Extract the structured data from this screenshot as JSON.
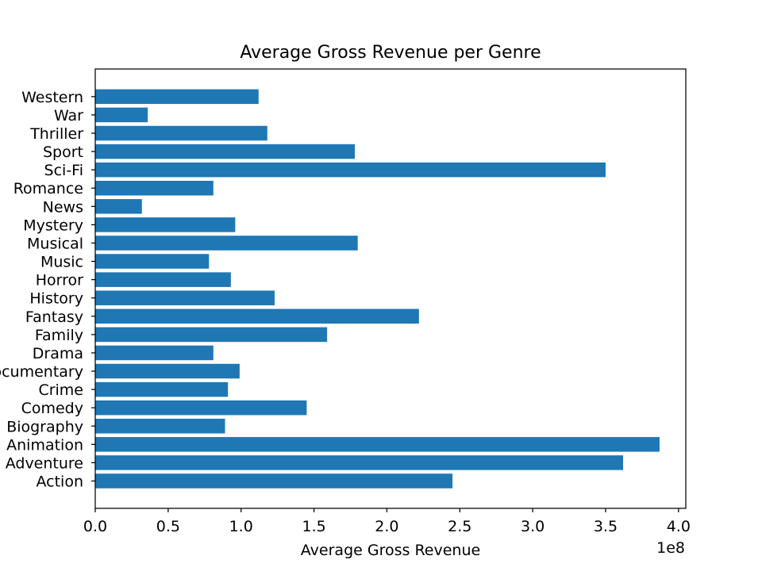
{
  "chart_data": {
    "type": "bar",
    "orientation": "horizontal",
    "title": "Average Gross Revenue per Genre",
    "xlabel": "Average Gross Revenue",
    "ylabel": "",
    "x_scale_note": "1e8",
    "xlim": [
      0,
      4.05
    ],
    "x_ticks": [
      {
        "value": 0.0,
        "label": "0.0"
      },
      {
        "value": 0.5,
        "label": "0.5"
      },
      {
        "value": 1.0,
        "label": "1.0"
      },
      {
        "value": 1.5,
        "label": "1.5"
      },
      {
        "value": 2.0,
        "label": "2.0"
      },
      {
        "value": 2.5,
        "label": "2.5"
      },
      {
        "value": 3.0,
        "label": "3.0"
      },
      {
        "value": 3.5,
        "label": "3.5"
      },
      {
        "value": 4.0,
        "label": "4.0"
      }
    ],
    "categories": [
      "Action",
      "Adventure",
      "Animation",
      "Biography",
      "Comedy",
      "Crime",
      "Documentary",
      "Drama",
      "Family",
      "Fantasy",
      "History",
      "Horror",
      "Music",
      "Musical",
      "Mystery",
      "News",
      "Romance",
      "Sci-Fi",
      "Sport",
      "Thriller",
      "War",
      "Western"
    ],
    "values": [
      2.45,
      3.62,
      3.87,
      0.89,
      1.45,
      0.91,
      0.99,
      0.81,
      1.59,
      2.22,
      1.23,
      0.93,
      0.78,
      1.8,
      0.96,
      0.32,
      0.81,
      3.5,
      1.78,
      1.18,
      0.36,
      1.12
    ],
    "bar_color": "#1f77b4",
    "grid": false,
    "legend": "none"
  }
}
